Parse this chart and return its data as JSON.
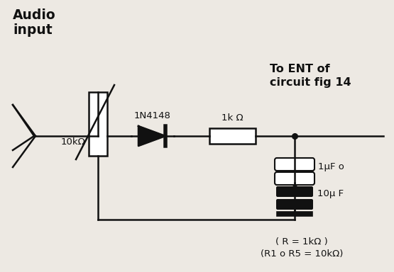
{
  "bg_color": "#ede9e3",
  "line_color": "#111111",
  "text_color": "#111111",
  "audio_input_label": "Audio\ninput",
  "to_ent_label": "To ENT of\ncircuit fig 14",
  "label_10k": "10kΩ",
  "label_1n4148": "1N4148",
  "label_1k": "1k Ω",
  "label_cap1": "1μF o",
  "label_cap2": "10μ F",
  "label_r_note1": "( R = 1kΩ )",
  "label_r_note2": "(R1 o R5 = 10kΩ)"
}
